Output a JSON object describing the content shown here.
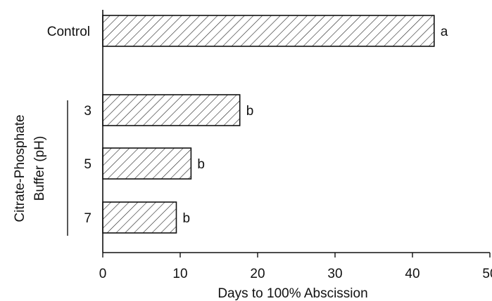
{
  "chart_data": {
    "type": "bar",
    "orientation": "horizontal",
    "title": "",
    "xlabel": "Days to 100% Abscission",
    "ylabel": "",
    "group_label_lines": [
      "Citrate-Phosphate",
      "Buffer (pH)"
    ],
    "xlim": [
      0,
      50
    ],
    "xticks": [
      0,
      10,
      20,
      30,
      40,
      50
    ],
    "grid": false,
    "bar_fill": "hatched",
    "categories": [
      "Control",
      "3",
      "5",
      "7"
    ],
    "values": [
      42.8,
      17.7,
      11.4,
      9.5
    ],
    "significance": [
      "a",
      "b",
      "b",
      "b"
    ]
  }
}
